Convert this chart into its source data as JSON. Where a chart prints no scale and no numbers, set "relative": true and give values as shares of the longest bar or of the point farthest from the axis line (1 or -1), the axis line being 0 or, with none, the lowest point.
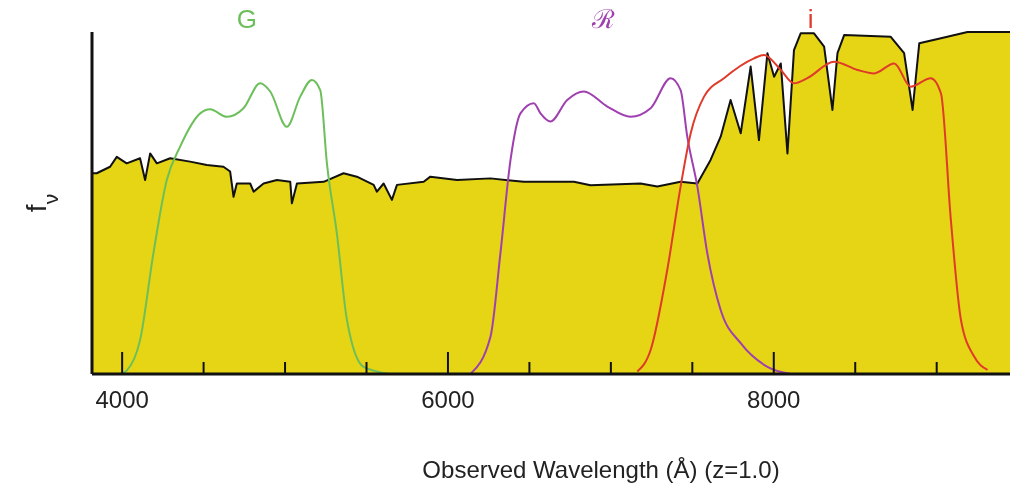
{
  "chart_data": {
    "type": "line",
    "relative": true,
    "xlabel": "Observed Wavelength (Å) (z=1.0)",
    "ylabel": "f$_{ν}$",
    "xlim": [
      3815,
      9450
    ],
    "xticks": [
      4000,
      {
        "value": 4500,
        "label": null
      },
      {
        "value": 5000,
        "label": null
      },
      {
        "value": 5500,
        "label": null
      },
      6000,
      {
        "value": 6500,
        "label": null
      },
      {
        "value": 7000,
        "label": null
      },
      {
        "value": 7500,
        "label": null
      },
      8000,
      {
        "value": 8500,
        "label": null
      },
      {
        "value": 9000,
        "label": null
      }
    ],
    "series": [
      {
        "type": "area",
        "color": "#e5d515",
        "x": [
          3815,
          3844,
          3926,
          3967,
          4028,
          4110,
          4141,
          4172,
          4213,
          4295,
          4417,
          4520,
          4622,
          4663,
          4684,
          4704,
          4786,
          4807,
          4868,
          4950,
          5032,
          5042,
          5073,
          5237,
          5359,
          5441,
          5544,
          5564,
          5605,
          5656,
          5687,
          5851,
          5892,
          6056,
          6261,
          6465,
          6568,
          6773,
          6875,
          7182,
          7285,
          7428,
          7531,
          7612,
          7674,
          7735,
          7797,
          7858,
          7909,
          7961,
          8002,
          8043,
          8084,
          8124,
          8165,
          8247,
          8309,
          8360,
          8391,
          8432,
          8718,
          8800,
          8852,
          8893,
          9026,
          9189,
          9450
        ],
        "values": [
          0.587,
          0.587,
          0.606,
          0.635,
          0.616,
          0.631,
          0.567,
          0.645,
          0.616,
          0.631,
          0.621,
          0.611,
          0.606,
          0.592,
          0.518,
          0.557,
          0.557,
          0.533,
          0.557,
          0.567,
          0.562,
          0.499,
          0.557,
          0.562,
          0.587,
          0.577,
          0.553,
          0.533,
          0.557,
          0.509,
          0.553,
          0.562,
          0.577,
          0.567,
          0.572,
          0.562,
          0.562,
          0.562,
          0.552,
          0.557,
          0.548,
          0.562,
          0.557,
          0.626,
          0.694,
          0.801,
          0.704,
          0.899,
          0.684,
          0.938,
          0.869,
          0.908,
          0.645,
          0.947,
          0.996,
          0.996,
          0.957,
          0.772,
          0.938,
          0.991,
          0.986,
          0.938,
          0.772,
          0.967,
          0.982,
          1.0,
          1.0
        ]
      },
      {
        "name": "G",
        "color": "#6cbf5a",
        "x": [
          3987,
          4028,
          4110,
          4192,
          4274,
          4356,
          4479,
          4540,
          4643,
          4745,
          4847,
          4909,
          5011,
          5093,
          5165,
          5216,
          5257,
          5318,
          5380,
          5482,
          5646
        ],
        "values": [
          0,
          0.01,
          0.099,
          0.353,
          0.567,
          0.665,
          0.762,
          0.774,
          0.752,
          0.777,
          0.85,
          0.826,
          0.723,
          0.811,
          0.86,
          0.83,
          0.616,
          0.411,
          0.158,
          0.021,
          0
        ]
      },
      {
        "name": "ℛ",
        "color": "#a040b0",
        "x": [
          6138,
          6261,
          6322,
          6384,
          6445,
          6527,
          6568,
          6629,
          6732,
          6834,
          6978,
          7121,
          7244,
          7367,
          7428,
          7469,
          7531,
          7592,
          7674,
          7797,
          7961,
          8104
        ],
        "values": [
          0,
          0.109,
          0.353,
          0.626,
          0.762,
          0.792,
          0.762,
          0.738,
          0.801,
          0.826,
          0.782,
          0.752,
          0.777,
          0.865,
          0.83,
          0.694,
          0.548,
          0.353,
          0.187,
          0.09,
          0.021,
          0
        ]
      },
      {
        "name": "i",
        "color": "#e03a2a",
        "x": [
          7162,
          7244,
          7346,
          7428,
          7490,
          7572,
          7694,
          7879,
          7940,
          8043,
          8124,
          8206,
          8370,
          8514,
          8616,
          8739,
          8841,
          8964,
          9026,
          9087,
          9149,
          9230,
          9312
        ],
        "values": [
          0.007,
          0.07,
          0.304,
          0.548,
          0.704,
          0.811,
          0.865,
          0.923,
          0.933,
          0.889,
          0.85,
          0.865,
          0.913,
          0.889,
          0.879,
          0.908,
          0.84,
          0.865,
          0.821,
          0.45,
          0.158,
          0.051,
          0.012
        ]
      }
    ]
  }
}
